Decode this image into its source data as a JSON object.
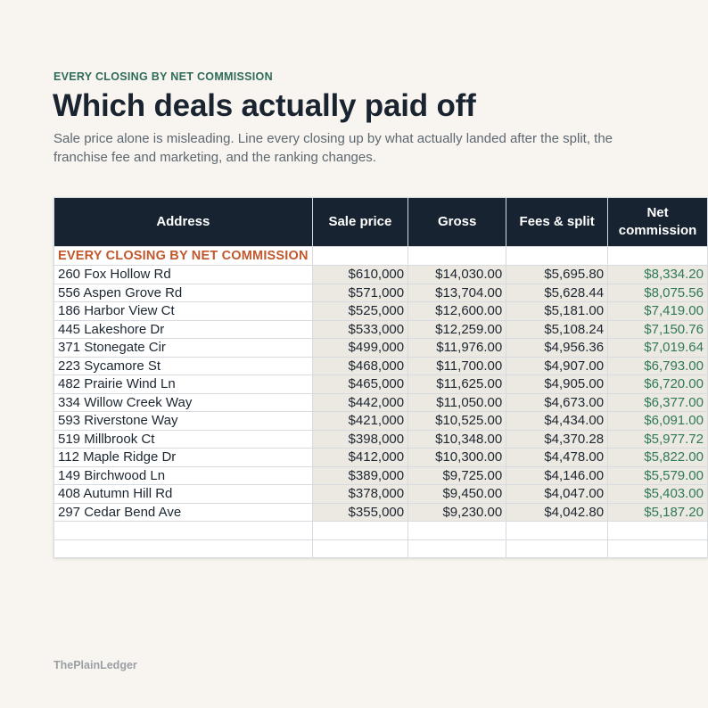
{
  "eyebrow": "EVERY CLOSING BY NET COMMISSION",
  "title": "Which deals actually paid off",
  "subtitle": "Sale price alone is misleading. Line every closing up by what actually landed after the split, the franchise fee and marketing, and the ranking changes.",
  "sheet": {
    "caption": "EVERY CLOSING BY NET COMMISSION",
    "headers": [
      "Address",
      "Sale price",
      "Gross",
      "Fees & split",
      "Net commission"
    ],
    "rows": [
      [
        "260 Fox Hollow Rd",
        "$610,000",
        "$14,030.00",
        "$5,695.80",
        "$8,334.20"
      ],
      [
        "556 Aspen Grove Rd",
        "$571,000",
        "$13,704.00",
        "$5,628.44",
        "$8,075.56"
      ],
      [
        "186 Harbor View Ct",
        "$525,000",
        "$12,600.00",
        "$5,181.00",
        "$7,419.00"
      ],
      [
        "445 Lakeshore Dr",
        "$533,000",
        "$12,259.00",
        "$5,108.24",
        "$7,150.76"
      ],
      [
        "371 Stonegate Cir",
        "$499,000",
        "$11,976.00",
        "$4,956.36",
        "$7,019.64"
      ],
      [
        "223 Sycamore St",
        "$468,000",
        "$11,700.00",
        "$4,907.00",
        "$6,793.00"
      ],
      [
        "482 Prairie Wind Ln",
        "$465,000",
        "$11,625.00",
        "$4,905.00",
        "$6,720.00"
      ],
      [
        "334 Willow Creek Way",
        "$442,000",
        "$11,050.00",
        "$4,673.00",
        "$6,377.00"
      ],
      [
        "593 Riverstone Way",
        "$421,000",
        "$10,525.00",
        "$4,434.00",
        "$6,091.00"
      ],
      [
        "519 Millbrook Ct",
        "$398,000",
        "$10,348.00",
        "$4,370.28",
        "$5,977.72"
      ],
      [
        "112 Maple Ridge Dr",
        "$412,000",
        "$10,300.00",
        "$4,478.00",
        "$5,822.00"
      ],
      [
        "149 Birchwood Ln",
        "$389,000",
        "$9,725.00",
        "$4,146.00",
        "$5,579.00"
      ],
      [
        "408 Autumn Hill Rd",
        "$378,000",
        "$9,450.00",
        "$4,047.00",
        "$5,403.00"
      ],
      [
        "297 Cedar Bend Ave",
        "$355,000",
        "$9,230.00",
        "$4,042.80",
        "$5,187.20"
      ]
    ]
  },
  "brand": "ThePlainLedger",
  "colors": {
    "header_bg": "#172331",
    "caption": "#c0582e",
    "eyebrow": "#2e6b5a",
    "net_value": "#2f7a55",
    "shaded_cell": "#ece8e2"
  }
}
